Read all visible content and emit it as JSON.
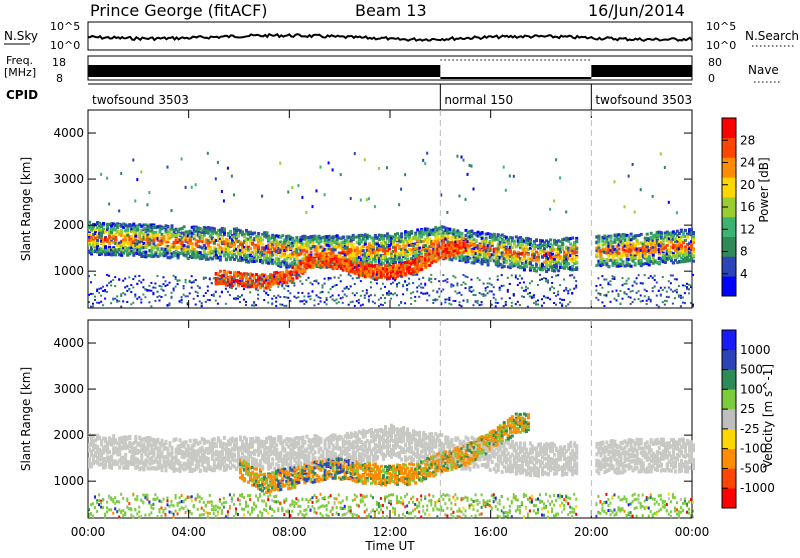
{
  "header": {
    "station": "Prince George (fitACF)",
    "beam": "Beam 13",
    "date": "16/Jun/2014"
  },
  "sky_panel": {
    "left_label": "N.Sky",
    "right_label": "N.Search",
    "left_ticks": [
      "10^5",
      "10^0"
    ],
    "right_ticks": [
      "10^5",
      "10^0"
    ]
  },
  "freq_panel": {
    "left_label_1": "Freq.",
    "left_label_2": "[MHz]",
    "right_label": "Nave",
    "left_ticks": [
      "18",
      "8"
    ],
    "right_ticks": [
      "80",
      "0"
    ]
  },
  "cpid": {
    "label": "CPID",
    "segments": [
      {
        "name": "twofsound 3503",
        "start_hour": 0,
        "end_hour": 14
      },
      {
        "name": "normal 150",
        "start_hour": 14,
        "end_hour": 20
      },
      {
        "name": "twofsound 3503",
        "start_hour": 20,
        "end_hour": 24
      }
    ]
  },
  "colors": {
    "power_scale": [
      "#0000ff",
      "#2b45b8",
      "#2e8b57",
      "#3cb371",
      "#9acd32",
      "#ffd700",
      "#ff8c00",
      "#ff4500",
      "#ff0000"
    ],
    "velocity_scale": [
      "#ff0000",
      "#ff4500",
      "#ff8c00",
      "#ffd700",
      "#bebebe",
      "#7ccd3c",
      "#2e8b57",
      "#2b45b8",
      "#1a1aff"
    ]
  },
  "chart_data": [
    {
      "type": "heatmap",
      "name": "power",
      "ylabel": "Slant Range [km]",
      "ylim": [
        200,
        4500
      ],
      "yticks": [
        "4000",
        "3000",
        "2000",
        "1000"
      ],
      "colorbar_label": "Power [dB]",
      "colorbar_ticks": [
        "28",
        "24",
        "20",
        "16",
        "12",
        "8",
        "4"
      ],
      "bands": [
        {
          "x": [
            0,
            2,
            4,
            6,
            8,
            10,
            12,
            14,
            16,
            18,
            20,
            22,
            24
          ],
          "y": [
            1750,
            1700,
            1650,
            1600,
            1450,
            1450,
            1500,
            1650,
            1500,
            1350,
            1450,
            1500,
            1600
          ],
          "value": 20
        },
        {
          "x": [
            5,
            6,
            7,
            8,
            9,
            10,
            11,
            12,
            13,
            14,
            15
          ],
          "y": [
            900,
            850,
            800,
            950,
            1300,
            1200,
            1050,
            1000,
            1150,
            1450,
            1600
          ],
          "value": 28
        }
      ]
    },
    {
      "type": "heatmap",
      "name": "velocity",
      "ylabel": "Slant Range [km]",
      "ylim": [
        200,
        4500
      ],
      "yticks": [
        "4000",
        "3000",
        "2000",
        "1000"
      ],
      "colorbar_label": "Velocity [m s^-1]",
      "colorbar_ticks": [
        "1000",
        "500",
        "100",
        "25",
        "-25",
        "-100",
        "-500",
        "-1000"
      ],
      "bands": [
        {
          "x": [
            0,
            2,
            4,
            6,
            8,
            10,
            12,
            14,
            16,
            18,
            20,
            22,
            24
          ],
          "y": [
            1700,
            1650,
            1600,
            1650,
            1650,
            1700,
            1900,
            1700,
            1600,
            1500,
            1550,
            1600,
            1600
          ],
          "value": 0
        },
        {
          "x": [
            6,
            7,
            8,
            9,
            10,
            11,
            12,
            13,
            14,
            15,
            16,
            17
          ],
          "y": [
            1300,
            1000,
            1100,
            1250,
            1300,
            1200,
            1150,
            1200,
            1450,
            1600,
            1900,
            2300
          ],
          "value": -150
        }
      ]
    }
  ],
  "x_axis": {
    "label": "Time UT",
    "ticks": [
      "00:00",
      "04:00",
      "08:00",
      "12:00",
      "16:00",
      "20:00",
      "00:00"
    ],
    "range_hours": [
      0,
      24
    ]
  }
}
